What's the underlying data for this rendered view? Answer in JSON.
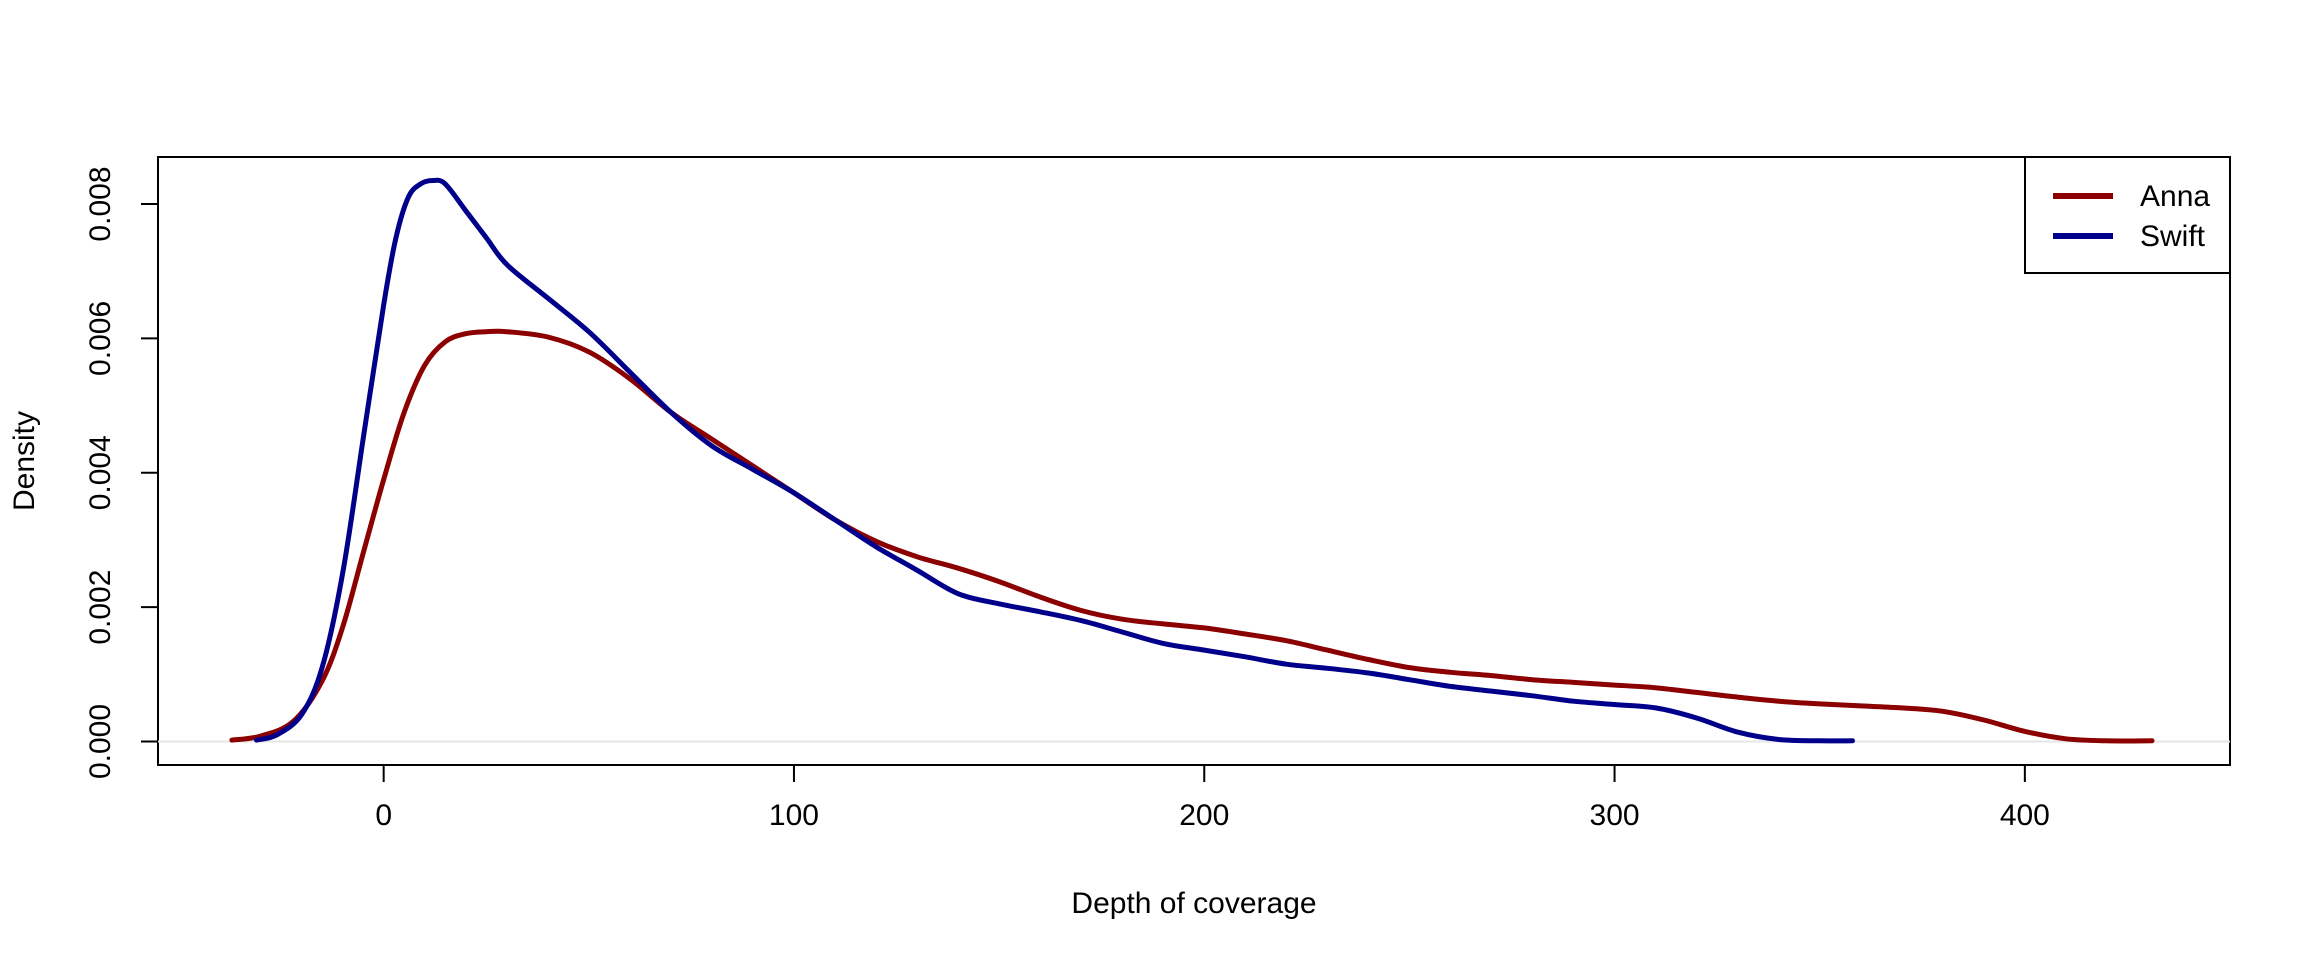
{
  "chart_data": {
    "type": "line",
    "title": "",
    "xlabel": "Depth of coverage",
    "ylabel": "Density",
    "xlim": [
      -55,
      450
    ],
    "ylim": [
      -0.00035,
      0.0087
    ],
    "xticks": [
      0,
      100,
      200,
      300,
      400
    ],
    "xtick_labels": [
      "0",
      "100",
      "200",
      "300",
      "400"
    ],
    "yticks": [
      0,
      0.002,
      0.004,
      0.006,
      0.008
    ],
    "ytick_labels": [
      "0.000",
      "0.002",
      "0.004",
      "0.006",
      "0.008"
    ],
    "grid": false,
    "legend_position": "top-right",
    "series": [
      {
        "name": "Anna",
        "color": "#8B0000",
        "x": [
          -37,
          -30,
          -22,
          -15,
          -10,
          -5,
          0,
          5,
          10,
          15,
          20,
          25,
          30,
          40,
          50,
          60,
          70,
          80,
          90,
          100,
          110,
          120,
          130,
          140,
          150,
          160,
          170,
          180,
          190,
          200,
          210,
          220,
          230,
          240,
          250,
          260,
          270,
          280,
          290,
          300,
          310,
          320,
          330,
          340,
          350,
          360,
          370,
          380,
          390,
          400,
          410,
          420,
          431
        ],
        "y": [
          2e-05,
          8e-05,
          0.0003,
          0.0009,
          0.0017,
          0.0028,
          0.0039,
          0.0049,
          0.0056,
          0.00595,
          0.00607,
          0.0061,
          0.0061,
          0.00602,
          0.0058,
          0.0054,
          0.0049,
          0.0045,
          0.0041,
          0.0037,
          0.0033,
          0.00298,
          0.00275,
          0.00258,
          0.00238,
          0.00215,
          0.00195,
          0.00182,
          0.00175,
          0.00169,
          0.0016,
          0.0015,
          0.00136,
          0.00122,
          0.0011,
          0.00103,
          0.00098,
          0.00092,
          0.00088,
          0.00084,
          0.0008,
          0.00073,
          0.00066,
          0.0006,
          0.00056,
          0.00053,
          0.0005,
          0.00045,
          0.00032,
          0.00015,
          4e-05,
          1e-05,
          1e-05
        ]
      },
      {
        "name": "Swift",
        "color": "#00008B",
        "x": [
          -31,
          -26,
          -20,
          -15,
          -10,
          -5,
          0,
          3,
          6,
          9,
          12,
          15,
          20,
          25,
          30,
          40,
          50,
          60,
          70,
          80,
          90,
          100,
          110,
          120,
          130,
          140,
          150,
          160,
          170,
          180,
          190,
          200,
          210,
          220,
          230,
          240,
          250,
          260,
          270,
          280,
          290,
          300,
          310,
          320,
          330,
          340,
          350,
          358
        ],
        "y": [
          2e-05,
          0.0001,
          0.0004,
          0.0011,
          0.0025,
          0.0045,
          0.0065,
          0.0075,
          0.0081,
          0.0083,
          0.00835,
          0.0083,
          0.0079,
          0.0075,
          0.0071,
          0.0066,
          0.0061,
          0.0055,
          0.0049,
          0.0044,
          0.00405,
          0.0037,
          0.0033,
          0.0029,
          0.00255,
          0.0022,
          0.00205,
          0.00193,
          0.0018,
          0.00163,
          0.00146,
          0.00136,
          0.00126,
          0.00115,
          0.00109,
          0.00102,
          0.00092,
          0.00082,
          0.00075,
          0.00068,
          0.0006,
          0.00055,
          0.0005,
          0.00035,
          0.00014,
          3e-05,
          1e-05,
          1e-05
        ]
      }
    ]
  }
}
